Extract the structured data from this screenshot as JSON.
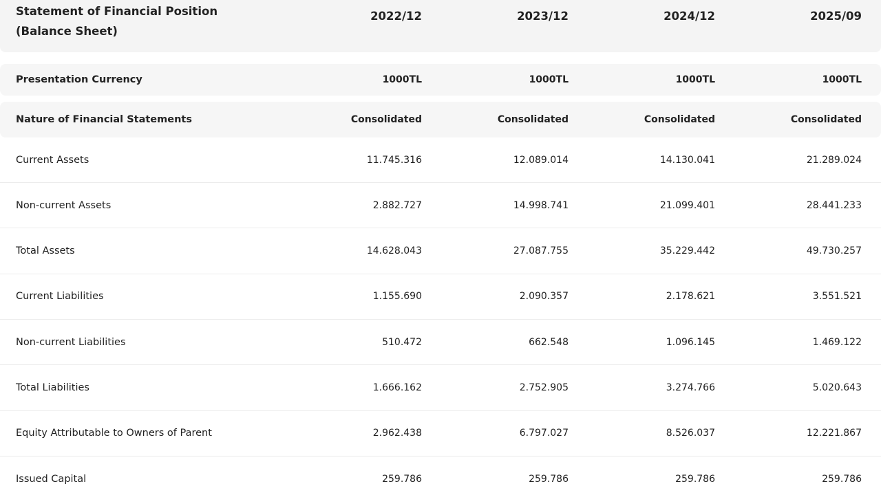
{
  "header": {
    "title_line1": "Statement of Financial Position",
    "title_line2": "(Balance Sheet)",
    "periods": [
      "2022/12",
      "2023/12",
      "2024/12",
      "2025/09"
    ]
  },
  "table": {
    "rows": [
      [
        "Presentation Currency",
        "1000TL",
        "1000TL",
        "1000TL",
        "1000TL"
      ],
      [
        "Nature of Financial Statements",
        "Consolidated",
        "Consolidated",
        "Consolidated",
        "Consolidated"
      ],
      [
        "Current Assets",
        "11.745.316",
        "12.089.014",
        "14.130.041",
        "21.289.024"
      ],
      [
        "Non-current Assets",
        "2.882.727",
        "14.998.741",
        "21.099.401",
        "28.441.233"
      ],
      [
        "Total Assets",
        "14.628.043",
        "27.087.755",
        "35.229.442",
        "49.730.257"
      ],
      [
        "Current Liabilities",
        "1.155.690",
        "2.090.357",
        "2.178.621",
        "3.551.521"
      ],
      [
        "Non-current Liabilities",
        "510.472",
        "662.548",
        "1.096.145",
        "1.469.122"
      ],
      [
        "Total Liabilities",
        "1.666.162",
        "2.752.905",
        "3.274.766",
        "5.020.643"
      ],
      [
        "Equity Attributable to Owners of Parent",
        "2.962.438",
        "6.797.027",
        "8.526.037",
        "12.221.867"
      ],
      [
        "Issued Capital",
        "259.786",
        "259.786",
        "259.786",
        "259.786"
      ]
    ]
  }
}
